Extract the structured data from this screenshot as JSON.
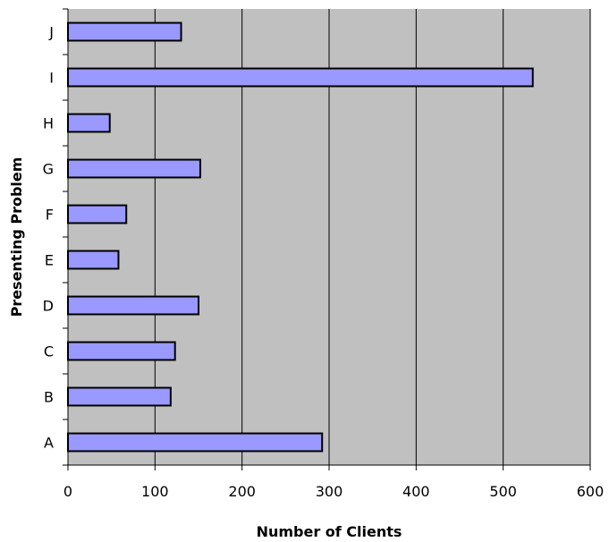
{
  "chart_data": {
    "type": "bar",
    "orientation": "horizontal",
    "title": "",
    "xlabel": "Number of Clients",
    "ylabel": "Presenting Problem",
    "categories": [
      "A",
      "B",
      "C",
      "D",
      "E",
      "F",
      "G",
      "H",
      "I",
      "J"
    ],
    "values": [
      292,
      118,
      123,
      150,
      58,
      67,
      152,
      48,
      534,
      130
    ],
    "xlim": [
      0,
      600
    ],
    "xticks": [
      "0",
      "100",
      "200",
      "300",
      "400",
      "500",
      "600"
    ],
    "grid": "vertical",
    "legend": "none",
    "colors": {
      "plot_background": "#c0c0c0",
      "bar_fill": "#9999ff",
      "bar_stroke": "#000000",
      "gridline": "#000000"
    }
  }
}
